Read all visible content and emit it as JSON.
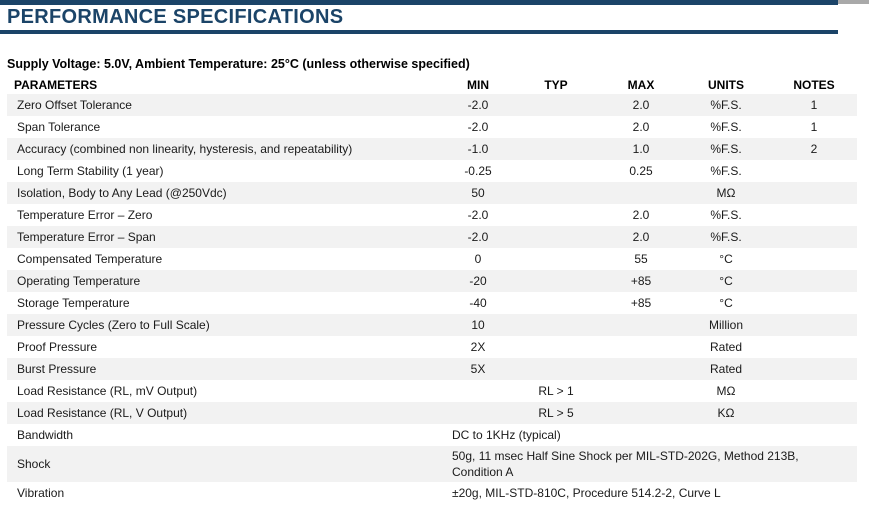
{
  "page": {
    "title": "PERFORMANCE SPECIFICATIONS",
    "condition_line": "Supply Voltage: 5.0V, Ambient Temperature: 25°C (unless otherwise specified)"
  },
  "colors": {
    "navy": "#1b4468",
    "row_alt": "#f2f2f2",
    "top_corner_gray": "#a9a9a9"
  },
  "table": {
    "headers": {
      "parameters": "PARAMETERS",
      "min": "MIN",
      "typ": "TYP",
      "max": "MAX",
      "units": "UNITS",
      "notes": "NOTES"
    },
    "rows": [
      {
        "parameter": "Zero Offset Tolerance",
        "min": "-2.0",
        "typ": "",
        "max": "2.0",
        "units": "%F.S.",
        "notes": "1"
      },
      {
        "parameter": "Span Tolerance",
        "min": "-2.0",
        "typ": "",
        "max": "2.0",
        "units": "%F.S.",
        "notes": "1"
      },
      {
        "parameter": "Accuracy (combined non linearity, hysteresis, and repeatability)",
        "min": "-1.0",
        "typ": "",
        "max": "1.0",
        "units": "%F.S.",
        "notes": "2"
      },
      {
        "parameter": "Long Term Stability (1 year)",
        "min": "-0.25",
        "typ": "",
        "max": "0.25",
        "units": "%F.S.",
        "notes": ""
      },
      {
        "parameter": "Isolation, Body to Any Lead (@250Vdc)",
        "min": "50",
        "typ": "",
        "max": "",
        "units": "MΩ",
        "notes": ""
      },
      {
        "parameter": "Temperature Error – Zero",
        "min": "-2.0",
        "typ": "",
        "max": "2.0",
        "units": "%F.S.",
        "notes": ""
      },
      {
        "parameter": "Temperature Error – Span",
        "min": "-2.0",
        "typ": "",
        "max": "2.0",
        "units": "%F.S.",
        "notes": ""
      },
      {
        "parameter": "Compensated Temperature",
        "min": "0",
        "typ": "",
        "max": "55",
        "units": "°C",
        "notes": ""
      },
      {
        "parameter": "Operating Temperature",
        "min": "-20",
        "typ": "",
        "max": "+85",
        "units": "°C",
        "notes": ""
      },
      {
        "parameter": "Storage Temperature",
        "min": "-40",
        "typ": "",
        "max": "+85",
        "units": "°C",
        "notes": ""
      },
      {
        "parameter": "Pressure Cycles (Zero to Full Scale)",
        "min": "10",
        "typ": "",
        "max": "",
        "units": "Million",
        "notes": ""
      },
      {
        "parameter": "Proof Pressure",
        "min": "2X",
        "typ": "",
        "max": "",
        "units": "Rated",
        "notes": ""
      },
      {
        "parameter": "Burst Pressure",
        "min": "5X",
        "typ": "",
        "max": "",
        "units": "Rated",
        "notes": ""
      },
      {
        "parameter": "Load Resistance (RL, mV Output)",
        "min": "",
        "typ": "RL > 1",
        "max": "",
        "units": "MΩ",
        "notes": ""
      },
      {
        "parameter": "Load Resistance (RL, V Output)",
        "min": "",
        "typ": "RL > 5",
        "max": "",
        "units": "KΩ",
        "notes": ""
      },
      {
        "parameter": "Bandwidth",
        "span": true,
        "value": "DC to 1KHz (typical)"
      },
      {
        "parameter": "Shock",
        "span": true,
        "value": "50g, 11 msec Half Sine Shock per MIL-STD-202G, Method 213B, Condition A"
      },
      {
        "parameter": "Vibration",
        "span": true,
        "value": "±20g, MIL-STD-810C, Procedure 514.2-2, Curve L"
      }
    ]
  }
}
